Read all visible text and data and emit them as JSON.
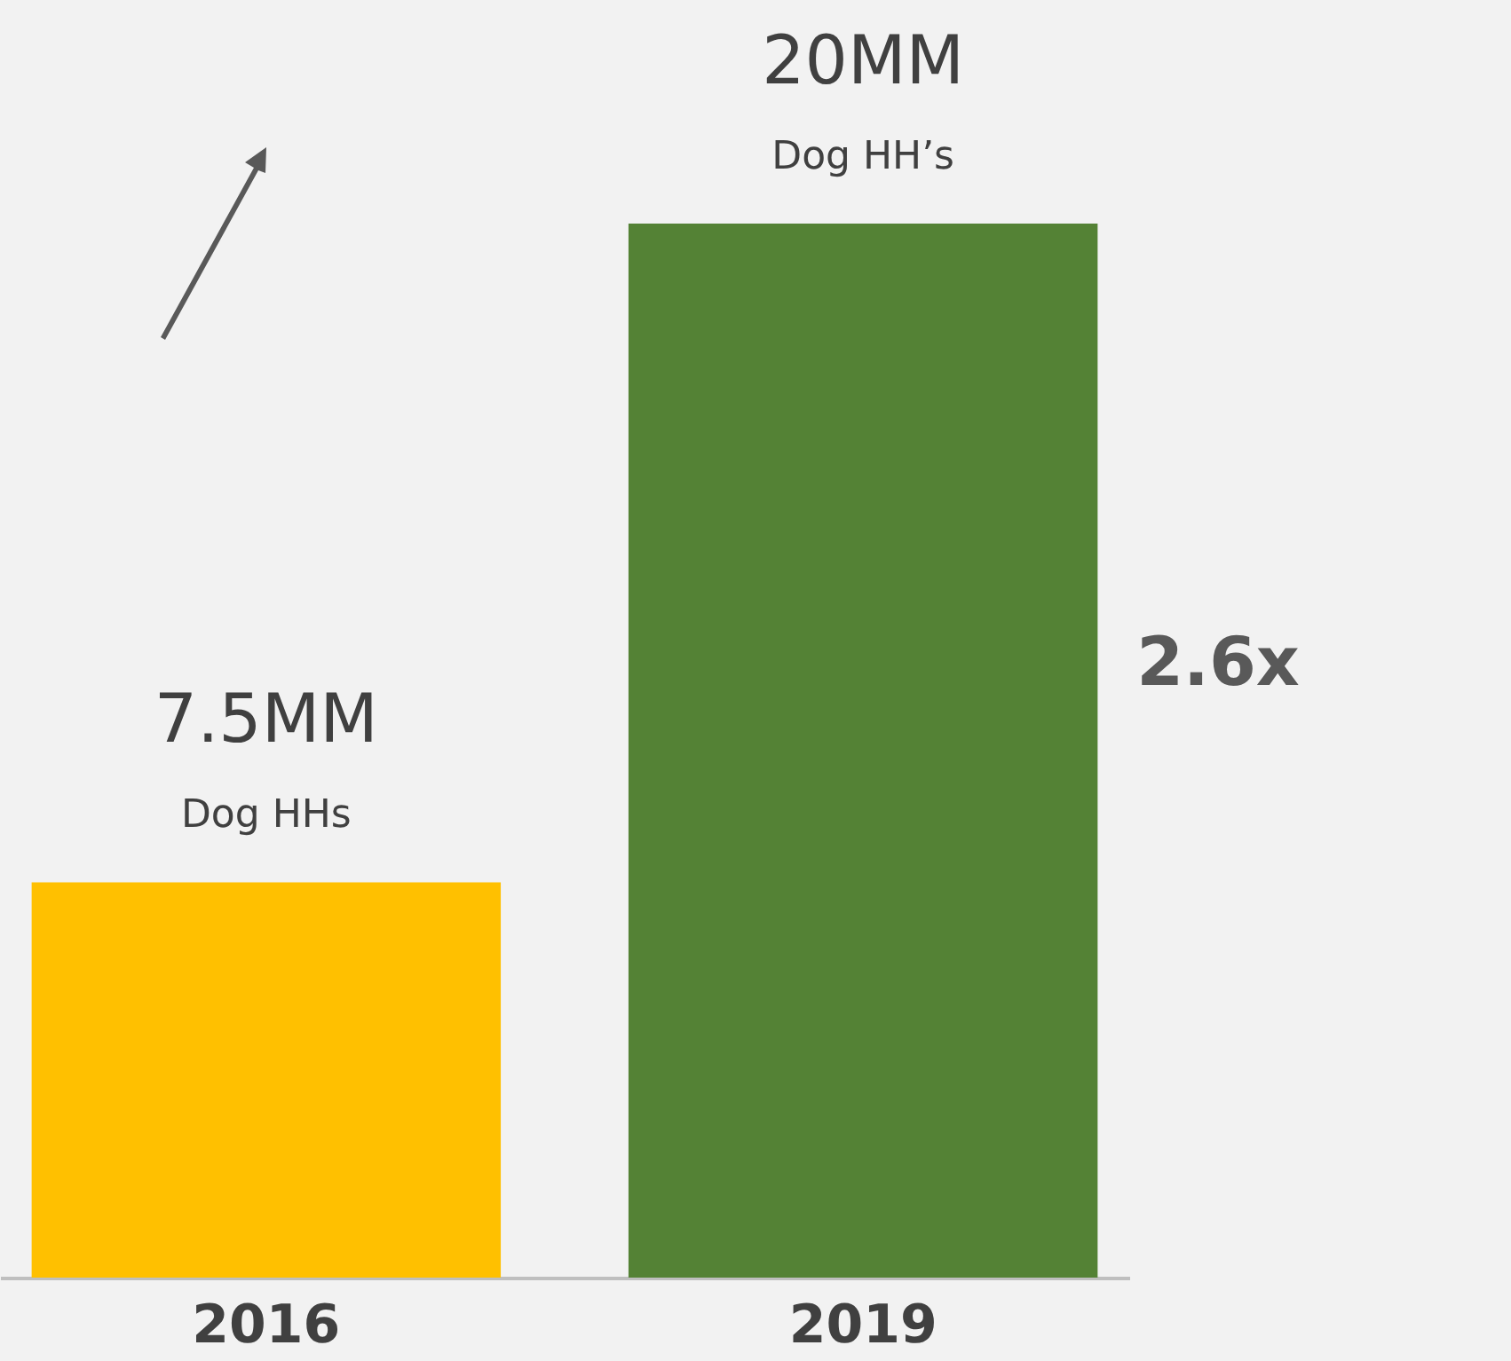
{
  "chart_data": {
    "type": "bar",
    "categories": [
      "2016",
      "2019"
    ],
    "values": [
      7.5,
      20
    ],
    "colors": [
      "#ffc000",
      "#548235"
    ],
    "value_labels": [
      "7.5MM",
      "20MM"
    ],
    "annotations": [
      {
        "text": "Dog HHs",
        "x": "2016",
        "y": 7.5
      },
      {
        "text": "Dog HH’s",
        "x": "2019",
        "y": 20
      },
      "2.6x"
    ]
  }
}
